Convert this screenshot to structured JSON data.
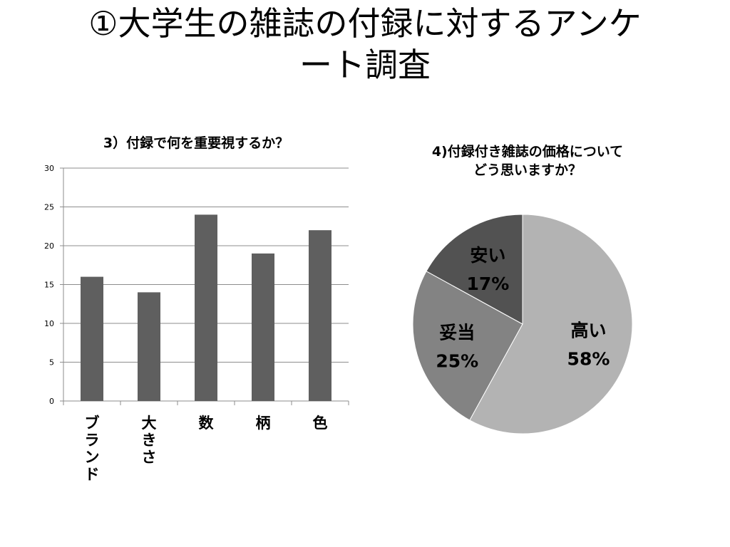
{
  "slide": {
    "title": "①大学生の雑誌の付録に対するアンケート調査"
  },
  "chart_data": [
    {
      "type": "bar",
      "title": "3）付録で何を重要視するか？",
      "categories": [
        "ブランド",
        "大きさ",
        "数",
        "柄",
        "色"
      ],
      "values": [
        16,
        14,
        24,
        19,
        22
      ],
      "ylim": [
        0,
        30
      ],
      "yticks": [
        0,
        5,
        10,
        15,
        20,
        25,
        30
      ],
      "xlabel": "",
      "ylabel": "",
      "grid": true,
      "bar_color": "#5f5f5f",
      "grid_color": "#8c8c8c"
    },
    {
      "type": "pie",
      "title": "4)付録付き雑誌の価格について\nどう思いますか？",
      "labels": [
        "高い",
        "妥当",
        "安い"
      ],
      "values": [
        58,
        25,
        17
      ],
      "value_labels": [
        "58%",
        "25%",
        "17%"
      ],
      "colors": [
        "#b3b3b3",
        "#838383",
        "#525252"
      ],
      "legend": "none"
    }
  ]
}
